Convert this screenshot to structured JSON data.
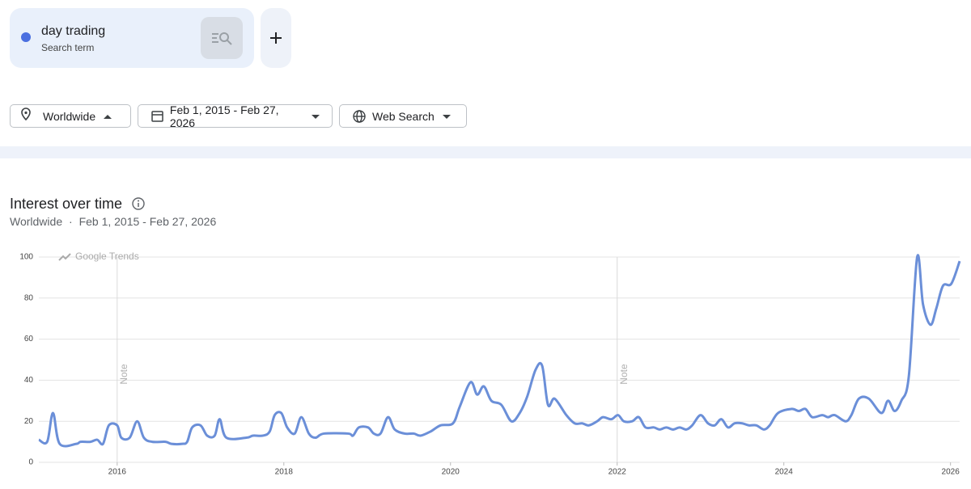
{
  "search_term": {
    "name": "day trading",
    "subtitle": "Search term"
  },
  "filters": [
    "Worldwide",
    "Feb 1, 2015 - Feb 27, 2026",
    "Web Search"
  ],
  "section": {
    "title": "Interest over time",
    "region": "Worldwide",
    "separator": "·",
    "range": "Feb 1, 2015 - Feb 27, 2026"
  },
  "chart_data": {
    "type": "line",
    "watermark": "Google Trends",
    "x": [
      2015.06,
      2015.16,
      2015.23,
      2015.31,
      2015.51,
      2015.56,
      2015.68,
      2015.76,
      2015.83,
      2015.9,
      2016.0,
      2016.05,
      2016.15,
      2016.24,
      2016.32,
      2016.42,
      2016.58,
      2016.65,
      2016.78,
      2016.84,
      2016.9,
      2017.0,
      2017.08,
      2017.17,
      2017.23,
      2017.31,
      2017.55,
      2017.63,
      2017.75,
      2017.83,
      2017.89,
      2017.97,
      2018.04,
      2018.13,
      2018.21,
      2018.3,
      2018.38,
      2018.48,
      2018.77,
      2018.83,
      2018.9,
      2019.01,
      2019.08,
      2019.16,
      2019.25,
      2019.33,
      2019.45,
      2019.56,
      2019.64,
      2019.76,
      2019.88,
      2020.03,
      2020.11,
      2020.24,
      2020.32,
      2020.4,
      2020.49,
      2020.61,
      2020.73,
      2020.83,
      2020.92,
      2021.02,
      2021.1,
      2021.17,
      2021.25,
      2021.39,
      2021.49,
      2021.58,
      2021.66,
      2021.76,
      2021.83,
      2021.93,
      2022.01,
      2022.08,
      2022.18,
      2022.26,
      2022.34,
      2022.44,
      2022.51,
      2022.59,
      2022.67,
      2022.75,
      2022.83,
      2022.9,
      2023.0,
      2023.09,
      2023.17,
      2023.25,
      2023.33,
      2023.41,
      2023.5,
      2023.58,
      2023.67,
      2023.76,
      2023.83,
      2023.93,
      2024.09,
      2024.18,
      2024.26,
      2024.34,
      2024.46,
      2024.53,
      2024.61,
      2024.74,
      2024.81,
      2024.9,
      2025.02,
      2025.17,
      2025.25,
      2025.33,
      2025.41,
      2025.5,
      2025.6,
      2025.67,
      2025.76,
      2025.83,
      2025.91,
      2026.01,
      2026.11
    ],
    "series": [
      {
        "name": "day trading",
        "color": "#6b8fd8",
        "values": [
          11,
          10,
          24,
          9,
          9,
          10,
          10,
          11,
          9,
          18,
          18,
          12,
          12,
          20,
          12,
          10,
          10,
          9,
          9,
          10,
          17,
          18,
          13,
          13,
          21,
          12,
          12,
          13,
          13,
          15,
          23,
          24,
          17,
          14,
          22,
          14,
          12,
          14,
          14,
          13,
          17,
          17,
          14,
          14,
          22,
          16,
          14,
          14,
          13,
          15,
          18,
          19,
          27,
          39,
          33,
          37,
          30,
          28,
          20,
          24,
          32,
          45,
          47,
          28,
          31,
          23,
          19,
          19,
          18,
          20,
          22,
          21,
          23,
          20,
          20,
          22,
          17,
          17,
          16,
          17,
          16,
          17,
          16,
          18,
          23,
          19,
          18,
          21,
          17,
          19,
          19,
          18,
          18,
          16,
          18,
          24,
          26,
          25,
          26,
          22,
          23,
          22,
          23,
          20,
          23,
          31,
          31,
          24,
          30,
          25,
          30,
          42,
          100,
          77,
          67,
          75,
          86,
          87,
          98
        ]
      }
    ],
    "xlim": [
      2015.06,
      2026.11
    ],
    "xticks": [
      2016,
      2018,
      2020,
      2022,
      2024,
      2026
    ],
    "ylim": [
      0,
      100
    ],
    "yticks": [
      0,
      20,
      40,
      60,
      80,
      100
    ],
    "grid": true,
    "annotations": [
      {
        "x": 2016,
        "label": "Note"
      },
      {
        "x": 2022,
        "label": "Note"
      }
    ]
  }
}
